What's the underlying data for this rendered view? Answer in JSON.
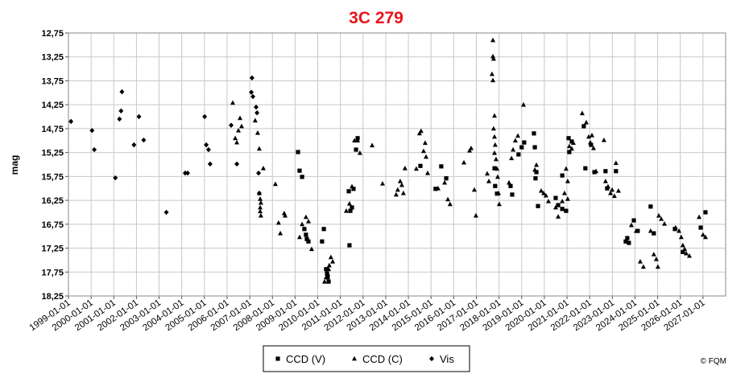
{
  "chart_data": {
    "type": "scatter",
    "title": "3C 279",
    "ylabel": "mag",
    "credit": "© FQM",
    "invert_y": true,
    "grid": true,
    "legend": "bottom",
    "xlim": [
      1999,
      2028
    ],
    "ylim": [
      12.75,
      18.25
    ],
    "xticks": [
      {
        "value": 1999,
        "label": "1999-01-01"
      },
      {
        "value": 2000,
        "label": "2000-01-01"
      },
      {
        "value": 2001,
        "label": "2001-01-01"
      },
      {
        "value": 2002,
        "label": "2002-01-01"
      },
      {
        "value": 2003,
        "label": "2003-01-01"
      },
      {
        "value": 2004,
        "label": "2004-01-01"
      },
      {
        "value": 2005,
        "label": "2005-01-01"
      },
      {
        "value": 2006,
        "label": "2006-01-01"
      },
      {
        "value": 2007,
        "label": "2007-01-01"
      },
      {
        "value": 2008,
        "label": "2008-01-01"
      },
      {
        "value": 2009,
        "label": "2009-01-01"
      },
      {
        "value": 2010,
        "label": "2010-01-01"
      },
      {
        "value": 2011,
        "label": "2011-01-01"
      },
      {
        "value": 2012,
        "label": "2012-01-01"
      },
      {
        "value": 2013,
        "label": "2013-01-01"
      },
      {
        "value": 2014,
        "label": "2014-01-01"
      },
      {
        "value": 2015,
        "label": "2015-01-01"
      },
      {
        "value": 2016,
        "label": "2016-01-01"
      },
      {
        "value": 2017,
        "label": "2017-01-01"
      },
      {
        "value": 2018,
        "label": "2018-01-01"
      },
      {
        "value": 2019,
        "label": "2019-01-01"
      },
      {
        "value": 2020,
        "label": "2020-01-01"
      },
      {
        "value": 2021,
        "label": "2021-01-01"
      },
      {
        "value": 2022,
        "label": "2022-01-01"
      },
      {
        "value": 2023,
        "label": "2023-01-01"
      },
      {
        "value": 2024,
        "label": "2024-01-01"
      },
      {
        "value": 2025,
        "label": "2025-01-01"
      },
      {
        "value": 2026,
        "label": "2026-01-01"
      },
      {
        "value": 2027,
        "label": "2027-01-01"
      }
    ],
    "yticks": [
      {
        "value": 12.75,
        "label": "12,75"
      },
      {
        "value": 13.25,
        "label": "13,25"
      },
      {
        "value": 13.75,
        "label": "13,75"
      },
      {
        "value": 14.25,
        "label": "14,25"
      },
      {
        "value": 14.75,
        "label": "14,75"
      },
      {
        "value": 15.25,
        "label": "15,25"
      },
      {
        "value": 15.75,
        "label": "15,75"
      },
      {
        "value": 16.25,
        "label": "16,25"
      },
      {
        "value": 16.75,
        "label": "16,75"
      },
      {
        "value": 17.25,
        "label": "17,25"
      },
      {
        "value": 17.75,
        "label": "17,75"
      },
      {
        "value": 18.25,
        "label": "18,25"
      }
    ],
    "series": [
      {
        "name": "CCD (V)",
        "color": "#000000",
        "marker": "square",
        "x": [
          2009.13,
          2009.2,
          2009.31,
          2009.41,
          2009.48,
          2009.52,
          2009.59,
          2010.19,
          2010.27,
          2010.37,
          2010.41,
          2010.44,
          2010.48,
          2011.37,
          2011.4,
          2011.44,
          2011.51,
          2011.58,
          2011.69,
          2011.76,
          2014.53,
          2015.2,
          2015.45,
          2015.67,
          2017.8,
          2017.83,
          2017.91,
          2018.51,
          2018.58,
          2018.86,
          2019.0,
          2019.11,
          2019.54,
          2019.58,
          2019.61,
          2019.65,
          2019.72,
          2020.5,
          2020.61,
          2020.79,
          2020.96,
          2020.79,
          2021.1,
          2021.21,
          2021.07,
          2021.74,
          2021.81,
          2022.06,
          2022.21,
          2022.7,
          2022.77,
          2023.16,
          2023.59,
          2023.66,
          2023.73,
          2023.95,
          2024.12,
          2024.69,
          2024.83,
          2025.76,
          2026.11,
          2026.9,
          2027.11
        ],
        "values": [
          15.24,
          15.63,
          15.76,
          16.85,
          16.97,
          17.06,
          17.11,
          17.11,
          16.85,
          17.69,
          17.78,
          17.86,
          17.95,
          16.06,
          17.19,
          16.47,
          16.4,
          16.01,
          15.19,
          14.95,
          15.53,
          16.01,
          15.54,
          15.79,
          15.58,
          15.95,
          16.11,
          15.95,
          16.13,
          15.29,
          15.14,
          15.04,
          14.85,
          15.14,
          15.79,
          15.66,
          16.37,
          16.2,
          16.35,
          16.43,
          16.47,
          15.73,
          15.24,
          15.02,
          14.95,
          14.7,
          15.58,
          15.09,
          15.66,
          15.64,
          16.0,
          15.64,
          17.11,
          17.04,
          17.14,
          16.67,
          16.89,
          16.38,
          16.94,
          16.85,
          17.33,
          16.82,
          16.5
        ]
      },
      {
        "name": "CCD (C)",
        "color": "#000000",
        "marker": "triangle",
        "x": [
          2006.25,
          2006.36,
          2006.43,
          2006.5,
          2006.57,
          2006.64,
          2007.24,
          2007.35,
          2007.42,
          2007.42,
          2007.46,
          2007.49,
          2007.46,
          2007.46,
          2007.49,
          2007.6,
          2008.13,
          2008.27,
          2008.35,
          2008.52,
          2008.56,
          2009.2,
          2009.31,
          2009.48,
          2009.59,
          2009.73,
          2010.3,
          2010.37,
          2010.44,
          2010.51,
          2010.58,
          2010.66,
          2010.48,
          2011.26,
          2011.4,
          2011.51,
          2011.62,
          2011.76,
          2011.86,
          2012.4,
          2012.86,
          2013.46,
          2013.53,
          2013.64,
          2013.71,
          2013.78,
          2013.85,
          2014.35,
          2014.49,
          2014.56,
          2014.67,
          2014.74,
          2014.78,
          2014.85,
          2015.31,
          2015.6,
          2015.74,
          2015.84,
          2016.45,
          2016.7,
          2016.77,
          2016.91,
          2016.98,
          2017.48,
          2017.55,
          2017.73,
          2017.73,
          2017.76,
          2017.69,
          2017.73,
          2017.8,
          2017.76,
          2017.8,
          2017.83,
          2017.8,
          2017.87,
          2017.91,
          2017.94,
          2017.98,
          2018.01,
          2018.44,
          2018.55,
          2018.62,
          2018.72,
          2018.83,
          2019.08,
          2019.58,
          2019.65,
          2019.86,
          2019.97,
          2020.07,
          2020.18,
          2020.5,
          2020.61,
          2020.79,
          2020.89,
          2020.96,
          2021.03,
          2021.03,
          2021.1,
          2021.21,
          2021.28,
          2021.67,
          2021.85,
          2021.96,
          2022.03,
          2022.1,
          2022.17,
          2022.28,
          2022.63,
          2022.7,
          2022.81,
          2022.92,
          2022.99,
          2023.09,
          2023.16,
          2023.27,
          2023.84,
          2024.05,
          2024.23,
          2024.37,
          2024.69,
          2024.83,
          2024.94,
          2025.01,
          2025.05,
          2025.16,
          2025.3,
          2025.79,
          2025.94,
          2026.04,
          2026.11,
          2026.19,
          2026.26,
          2026.4,
          2026.83,
          2027.0,
          2027.11
        ],
        "values": [
          14.21,
          14.95,
          15.04,
          14.79,
          14.53,
          14.7,
          14.58,
          14.84,
          15.17,
          16.1,
          16.22,
          16.3,
          16.4,
          16.48,
          16.57,
          15.58,
          15.91,
          16.72,
          16.94,
          16.52,
          16.57,
          17.02,
          16.75,
          16.6,
          16.69,
          17.27,
          17.95,
          17.86,
          17.78,
          17.61,
          17.44,
          17.53,
          17.69,
          16.47,
          16.32,
          15.96,
          15.0,
          15.0,
          15.26,
          15.1,
          15.9,
          16.13,
          16.03,
          15.85,
          15.93,
          16.1,
          15.58,
          15.59,
          14.85,
          14.8,
          15.22,
          15.05,
          15.34,
          15.68,
          16.0,
          15.88,
          16.23,
          16.33,
          15.46,
          15.21,
          15.16,
          16.03,
          16.57,
          15.69,
          15.85,
          12.9,
          13.24,
          13.29,
          13.61,
          13.74,
          14.48,
          14.75,
          14.92,
          15.09,
          15.26,
          15.39,
          15.59,
          15.76,
          16.1,
          16.33,
          15.88,
          15.37,
          15.19,
          15.0,
          14.9,
          14.25,
          15.61,
          15.51,
          16.05,
          16.1,
          16.15,
          16.27,
          16.4,
          16.59,
          16.27,
          16.1,
          15.59,
          15.85,
          16.22,
          15.12,
          15.17,
          15.05,
          14.43,
          14.62,
          14.92,
          15.04,
          14.89,
          15.16,
          15.64,
          14.99,
          15.85,
          15.96,
          16.1,
          16.03,
          16.16,
          15.47,
          16.05,
          16.77,
          16.89,
          17.53,
          17.64,
          16.89,
          17.38,
          17.48,
          17.64,
          16.57,
          16.64,
          16.74,
          16.82,
          16.89,
          17.02,
          17.19,
          17.27,
          17.36,
          17.41,
          16.6,
          16.97,
          17.02
        ]
      },
      {
        "name": "Vis",
        "color": "#000000",
        "marker": "diamond",
        "x": [
          1999.11,
          2000.04,
          2000.14,
          2001.07,
          2001.25,
          2001.32,
          2001.36,
          2001.89,
          2002.11,
          2002.32,
          2003.32,
          2004.15,
          2004.26,
          2005.01,
          2005.08,
          2005.18,
          2005.25,
          2006.18,
          2006.43,
          2007.1,
          2007.07,
          2007.14,
          2007.28,
          2007.32,
          2007.39,
          2007.42
        ],
        "values": [
          14.6,
          14.79,
          15.19,
          15.78,
          14.55,
          14.38,
          13.98,
          15.09,
          14.5,
          14.99,
          16.5,
          15.68,
          15.68,
          14.5,
          15.09,
          15.19,
          15.49,
          14.68,
          15.49,
          13.69,
          13.99,
          14.08,
          14.3,
          14.42,
          15.68,
          16.1
        ]
      }
    ]
  }
}
